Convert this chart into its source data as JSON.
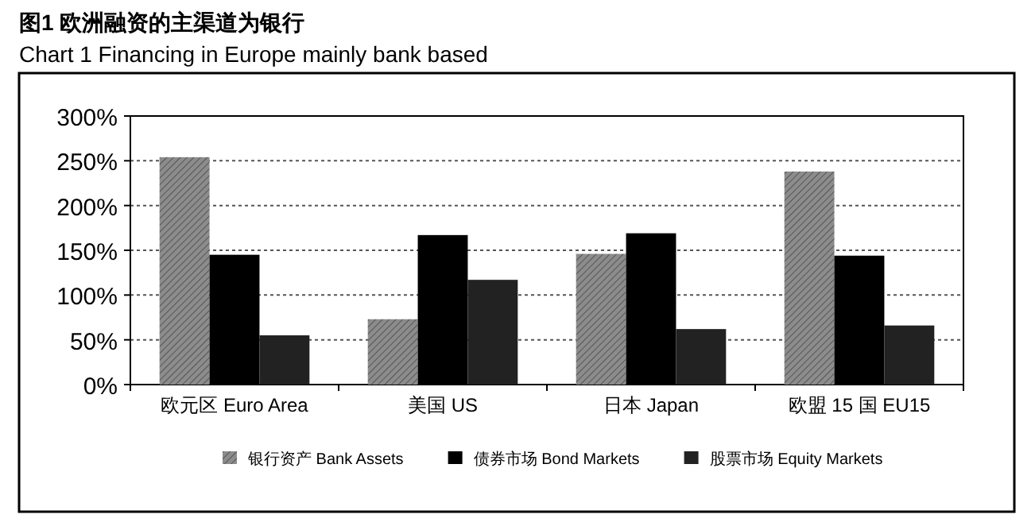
{
  "chart_data": {
    "type": "bar",
    "title": "图1  欧洲融资的主渠道为银行",
    "subtitle": "Chart 1      Financing in Europe mainly bank based",
    "categories": [
      "欧元区  Euro Area",
      "美国  US",
      "日本  Japan",
      "欧盟 15 国  EU15"
    ],
    "series": [
      {
        "name": "银行资产  Bank Assets",
        "color": "#8c8c8c",
        "values": [
          254,
          73,
          146,
          238
        ]
      },
      {
        "name": "债券市场  Bond Markets",
        "color": "#000000",
        "values": [
          145,
          167,
          169,
          144
        ]
      },
      {
        "name": "股票市场  Equity Markets",
        "color": "#222222",
        "values": [
          55,
          117,
          62,
          66
        ]
      }
    ],
    "ylim": [
      0,
      300
    ],
    "yticks": [
      {
        "value": 0,
        "label": "0%"
      },
      {
        "value": 50,
        "label": "50%"
      },
      {
        "value": 100,
        "label": "100%"
      },
      {
        "value": 150,
        "label": "150%"
      },
      {
        "value": 200,
        "label": "200%"
      },
      {
        "value": 250,
        "label": "250%"
      },
      {
        "value": 300,
        "label": "300%"
      }
    ],
    "grid": "y",
    "legend": "bottom"
  }
}
